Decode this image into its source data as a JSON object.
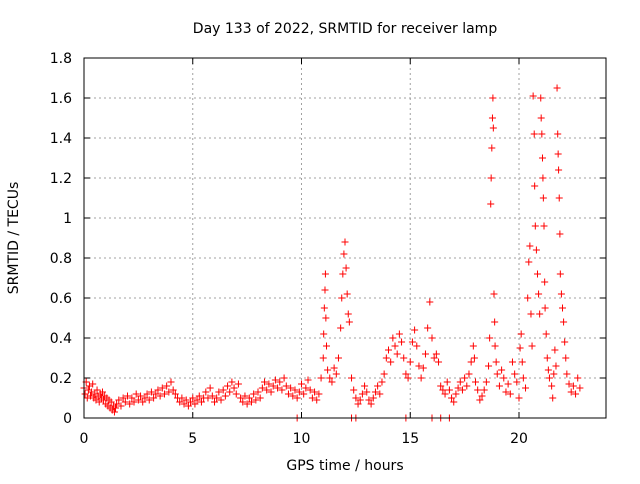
{
  "chart_data": {
    "type": "scatter",
    "title": "Day 133 of 2022, SRMTID for receiver lamp",
    "xlabel": "GPS time / hours",
    "ylabel": "SRMTID / TECUs",
    "xlim": [
      0,
      24
    ],
    "ylim": [
      0,
      1.8
    ],
    "xticks": [
      0,
      5,
      10,
      15,
      20
    ],
    "xtick_labels": [
      "0",
      "5",
      "10",
      "15",
      "20"
    ],
    "yticks": [
      0,
      0.2,
      0.4,
      0.6,
      0.8,
      1.0,
      1.2,
      1.4,
      1.6,
      1.8
    ],
    "ytick_labels": [
      "0",
      "0.2",
      "0.4",
      "0.6",
      "0.8",
      "1",
      "1.2",
      "1.4",
      "1.6",
      "1.8"
    ],
    "grid": true,
    "marker": "+",
    "color": "#ff0000",
    "series": [
      {
        "name": "SRMTID",
        "points": [
          [
            0.0,
            0.15
          ],
          [
            0.05,
            0.12
          ],
          [
            0.1,
            0.18
          ],
          [
            0.15,
            0.1
          ],
          [
            0.2,
            0.14
          ],
          [
            0.25,
            0.16
          ],
          [
            0.3,
            0.11
          ],
          [
            0.35,
            0.13
          ],
          [
            0.4,
            0.17
          ],
          [
            0.45,
            0.1
          ],
          [
            0.5,
            0.12
          ],
          [
            0.55,
            0.09
          ],
          [
            0.6,
            0.14
          ],
          [
            0.65,
            0.11
          ],
          [
            0.7,
            0.08
          ],
          [
            0.75,
            0.12
          ],
          [
            0.8,
            0.1
          ],
          [
            0.85,
            0.13
          ],
          [
            0.9,
            0.09
          ],
          [
            0.95,
            0.11
          ],
          [
            1.0,
            0.07
          ],
          [
            1.05,
            0.1
          ],
          [
            1.1,
            0.06
          ],
          [
            1.15,
            0.09
          ],
          [
            1.2,
            0.05
          ],
          [
            1.25,
            0.08
          ],
          [
            1.3,
            0.04
          ],
          [
            1.35,
            0.06
          ],
          [
            1.4,
            0.03
          ],
          [
            1.45,
            0.05
          ],
          [
            1.5,
            0.07
          ],
          [
            1.6,
            0.09
          ],
          [
            1.7,
            0.06
          ],
          [
            1.8,
            0.1
          ],
          [
            1.9,
            0.08
          ],
          [
            2.0,
            0.11
          ],
          [
            2.1,
            0.07
          ],
          [
            2.2,
            0.1
          ],
          [
            2.3,
            0.08
          ],
          [
            2.4,
            0.12
          ],
          [
            2.5,
            0.09
          ],
          [
            2.6,
            0.11
          ],
          [
            2.7,
            0.08
          ],
          [
            2.8,
            0.1
          ],
          [
            2.9,
            0.12
          ],
          [
            3.0,
            0.09
          ],
          [
            3.1,
            0.13
          ],
          [
            3.2,
            0.1
          ],
          [
            3.3,
            0.12
          ],
          [
            3.4,
            0.14
          ],
          [
            3.5,
            0.11
          ],
          [
            3.6,
            0.15
          ],
          [
            3.7,
            0.12
          ],
          [
            3.8,
            0.16
          ],
          [
            3.9,
            0.13
          ],
          [
            4.0,
            0.18
          ],
          [
            4.1,
            0.14
          ],
          [
            4.2,
            0.12
          ],
          [
            4.3,
            0.1
          ],
          [
            4.4,
            0.08
          ],
          [
            4.5,
            0.1
          ],
          [
            4.6,
            0.07
          ],
          [
            4.7,
            0.09
          ],
          [
            4.8,
            0.06
          ],
          [
            4.9,
            0.08
          ],
          [
            5.0,
            0.1
          ],
          [
            5.1,
            0.07
          ],
          [
            5.2,
            0.09
          ],
          [
            5.3,
            0.11
          ],
          [
            5.4,
            0.08
          ],
          [
            5.5,
            0.1
          ],
          [
            5.6,
            0.13
          ],
          [
            5.7,
            0.1
          ],
          [
            5.8,
            0.15
          ],
          [
            5.9,
            0.11
          ],
          [
            6.0,
            0.08
          ],
          [
            6.1,
            0.1
          ],
          [
            6.2,
            0.13
          ],
          [
            6.3,
            0.09
          ],
          [
            6.4,
            0.14
          ],
          [
            6.5,
            0.11
          ],
          [
            6.6,
            0.16
          ],
          [
            6.7,
            0.13
          ],
          [
            6.8,
            0.18
          ],
          [
            6.9,
            0.15
          ],
          [
            7.0,
            0.12
          ],
          [
            7.1,
            0.17
          ],
          [
            7.2,
            0.1
          ],
          [
            7.3,
            0.08
          ],
          [
            7.4,
            0.11
          ],
          [
            7.5,
            0.07
          ],
          [
            7.6,
            0.1
          ],
          [
            7.7,
            0.08
          ],
          [
            7.8,
            0.12
          ],
          [
            7.9,
            0.09
          ],
          [
            8.0,
            0.13
          ],
          [
            8.1,
            0.1
          ],
          [
            8.2,
            0.15
          ],
          [
            8.3,
            0.18
          ],
          [
            8.4,
            0.14
          ],
          [
            8.5,
            0.17
          ],
          [
            8.6,
            0.13
          ],
          [
            8.7,
            0.16
          ],
          [
            8.8,
            0.19
          ],
          [
            8.9,
            0.15
          ],
          [
            9.0,
            0.18
          ],
          [
            9.1,
            0.14
          ],
          [
            9.2,
            0.2
          ],
          [
            9.3,
            0.16
          ],
          [
            9.4,
            0.12
          ],
          [
            9.5,
            0.15
          ],
          [
            9.6,
            0.11
          ],
          [
            9.7,
            0.14
          ],
          [
            9.8,
            0.1
          ],
          [
            9.9,
            0.13
          ],
          [
            10.0,
            0.17
          ],
          [
            10.1,
            0.12
          ],
          [
            10.2,
            0.15
          ],
          [
            10.3,
            0.19
          ],
          [
            10.4,
            0.14
          ],
          [
            10.5,
            0.1
          ],
          [
            10.6,
            0.13
          ],
          [
            10.7,
            0.09
          ],
          [
            10.8,
            0.12
          ],
          [
            10.9,
            0.2
          ],
          [
            11.0,
            0.3
          ],
          [
            11.02,
            0.42
          ],
          [
            11.05,
            0.55
          ],
          [
            11.08,
            0.64
          ],
          [
            11.1,
            0.72
          ],
          [
            11.12,
            0.5
          ],
          [
            11.15,
            0.36
          ],
          [
            11.2,
            0.24
          ],
          [
            11.3,
            0.2
          ],
          [
            11.4,
            0.18
          ],
          [
            11.5,
            0.25
          ],
          [
            11.6,
            0.22
          ],
          [
            11.7,
            0.3
          ],
          [
            11.8,
            0.45
          ],
          [
            11.85,
            0.6
          ],
          [
            11.9,
            0.72
          ],
          [
            11.95,
            0.82
          ],
          [
            12.0,
            0.88
          ],
          [
            12.05,
            0.75
          ],
          [
            12.1,
            0.62
          ],
          [
            12.15,
            0.52
          ],
          [
            12.2,
            0.48
          ],
          [
            12.3,
            0.2
          ],
          [
            12.4,
            0.14
          ],
          [
            12.5,
            0.1
          ],
          [
            12.6,
            0.07
          ],
          [
            12.7,
            0.09
          ],
          [
            12.8,
            0.12
          ],
          [
            12.9,
            0.16
          ],
          [
            13.0,
            0.13
          ],
          [
            13.1,
            0.09
          ],
          [
            13.2,
            0.07
          ],
          [
            13.3,
            0.1
          ],
          [
            13.4,
            0.13
          ],
          [
            13.5,
            0.16
          ],
          [
            13.6,
            0.12
          ],
          [
            13.7,
            0.18
          ],
          [
            13.8,
            0.22
          ],
          [
            13.9,
            0.3
          ],
          [
            14.0,
            0.34
          ],
          [
            14.1,
            0.28
          ],
          [
            14.2,
            0.4
          ],
          [
            14.3,
            0.36
          ],
          [
            14.4,
            0.32
          ],
          [
            14.5,
            0.42
          ],
          [
            14.6,
            0.38
          ],
          [
            14.7,
            0.3
          ],
          [
            14.8,
            0.22
          ],
          [
            14.9,
            0.2
          ],
          [
            15.0,
            0.28
          ],
          [
            15.1,
            0.38
          ],
          [
            15.2,
            0.44
          ],
          [
            15.3,
            0.36
          ],
          [
            15.4,
            0.26
          ],
          [
            15.5,
            0.2
          ],
          [
            15.6,
            0.25
          ],
          [
            15.7,
            0.32
          ],
          [
            15.8,
            0.45
          ],
          [
            15.9,
            0.58
          ],
          [
            16.0,
            0.4
          ],
          [
            16.1,
            0.3
          ],
          [
            16.2,
            0.32
          ],
          [
            16.3,
            0.28
          ],
          [
            16.4,
            0.16
          ],
          [
            16.5,
            0.14
          ],
          [
            16.6,
            0.12
          ],
          [
            16.7,
            0.18
          ],
          [
            16.8,
            0.14
          ],
          [
            16.9,
            0.1
          ],
          [
            17.0,
            0.08
          ],
          [
            17.1,
            0.12
          ],
          [
            17.2,
            0.15
          ],
          [
            17.3,
            0.18
          ],
          [
            17.4,
            0.14
          ],
          [
            17.5,
            0.2
          ],
          [
            17.6,
            0.16
          ],
          [
            17.7,
            0.22
          ],
          [
            17.8,
            0.28
          ],
          [
            17.9,
            0.36
          ],
          [
            17.95,
            0.3
          ],
          [
            18.0,
            0.18
          ],
          [
            18.1,
            0.14
          ],
          [
            18.2,
            0.09
          ],
          [
            18.3,
            0.11
          ],
          [
            18.4,
            0.14
          ],
          [
            18.5,
            0.18
          ],
          [
            18.6,
            0.26
          ],
          [
            18.65,
            0.4
          ],
          [
            18.7,
            1.07
          ],
          [
            18.72,
            1.2
          ],
          [
            18.75,
            1.35
          ],
          [
            18.78,
            1.5
          ],
          [
            18.8,
            1.6
          ],
          [
            18.82,
            1.45
          ],
          [
            18.85,
            0.62
          ],
          [
            18.88,
            0.48
          ],
          [
            18.9,
            0.36
          ],
          [
            18.95,
            0.28
          ],
          [
            19.0,
            0.22
          ],
          [
            19.1,
            0.16
          ],
          [
            19.2,
            0.24
          ],
          [
            19.3,
            0.2
          ],
          [
            19.4,
            0.13
          ],
          [
            19.5,
            0.17
          ],
          [
            19.6,
            0.12
          ],
          [
            19.7,
            0.28
          ],
          [
            19.8,
            0.22
          ],
          [
            19.9,
            0.18
          ],
          [
            20.0,
            0.1
          ],
          [
            20.05,
            0.35
          ],
          [
            20.1,
            0.42
          ],
          [
            20.15,
            0.28
          ],
          [
            20.2,
            0.2
          ],
          [
            20.3,
            0.15
          ],
          [
            20.4,
            0.6
          ],
          [
            20.45,
            0.78
          ],
          [
            20.5,
            0.86
          ],
          [
            20.55,
            0.52
          ],
          [
            20.6,
            0.36
          ],
          [
            20.65,
            1.61
          ],
          [
            20.7,
            1.42
          ],
          [
            20.72,
            1.16
          ],
          [
            20.75,
            0.96
          ],
          [
            20.8,
            0.84
          ],
          [
            20.85,
            0.72
          ],
          [
            20.9,
            0.62
          ],
          [
            20.95,
            0.52
          ],
          [
            21.0,
            1.6
          ],
          [
            21.02,
            1.5
          ],
          [
            21.05,
            1.42
          ],
          [
            21.08,
            1.3
          ],
          [
            21.1,
            1.2
          ],
          [
            21.12,
            1.1
          ],
          [
            21.15,
            0.96
          ],
          [
            21.18,
            0.68
          ],
          [
            21.2,
            0.55
          ],
          [
            21.25,
            0.42
          ],
          [
            21.3,
            0.3
          ],
          [
            21.35,
            0.24
          ],
          [
            21.4,
            0.2
          ],
          [
            21.5,
            0.16
          ],
          [
            21.55,
            0.1
          ],
          [
            21.6,
            0.22
          ],
          [
            21.65,
            0.34
          ],
          [
            21.7,
            0.26
          ],
          [
            21.75,
            1.65
          ],
          [
            21.78,
            1.42
          ],
          [
            21.8,
            1.32
          ],
          [
            21.82,
            1.24
          ],
          [
            21.85,
            1.1
          ],
          [
            21.88,
            0.92
          ],
          [
            21.9,
            0.72
          ],
          [
            21.95,
            0.62
          ],
          [
            22.0,
            0.55
          ],
          [
            22.05,
            0.48
          ],
          [
            22.1,
            0.38
          ],
          [
            22.15,
            0.3
          ],
          [
            22.2,
            0.22
          ],
          [
            22.3,
            0.17
          ],
          [
            22.4,
            0.13
          ],
          [
            22.5,
            0.16
          ],
          [
            22.6,
            0.12
          ],
          [
            22.7,
            0.2
          ],
          [
            22.8,
            0.15
          ],
          [
            9.8,
            0.0
          ],
          [
            12.3,
            0.0
          ],
          [
            12.5,
            0.0
          ],
          [
            14.8,
            0.0
          ],
          [
            16.0,
            0.0
          ],
          [
            16.4,
            0.0
          ],
          [
            16.8,
            0.0
          ]
        ]
      }
    ]
  }
}
